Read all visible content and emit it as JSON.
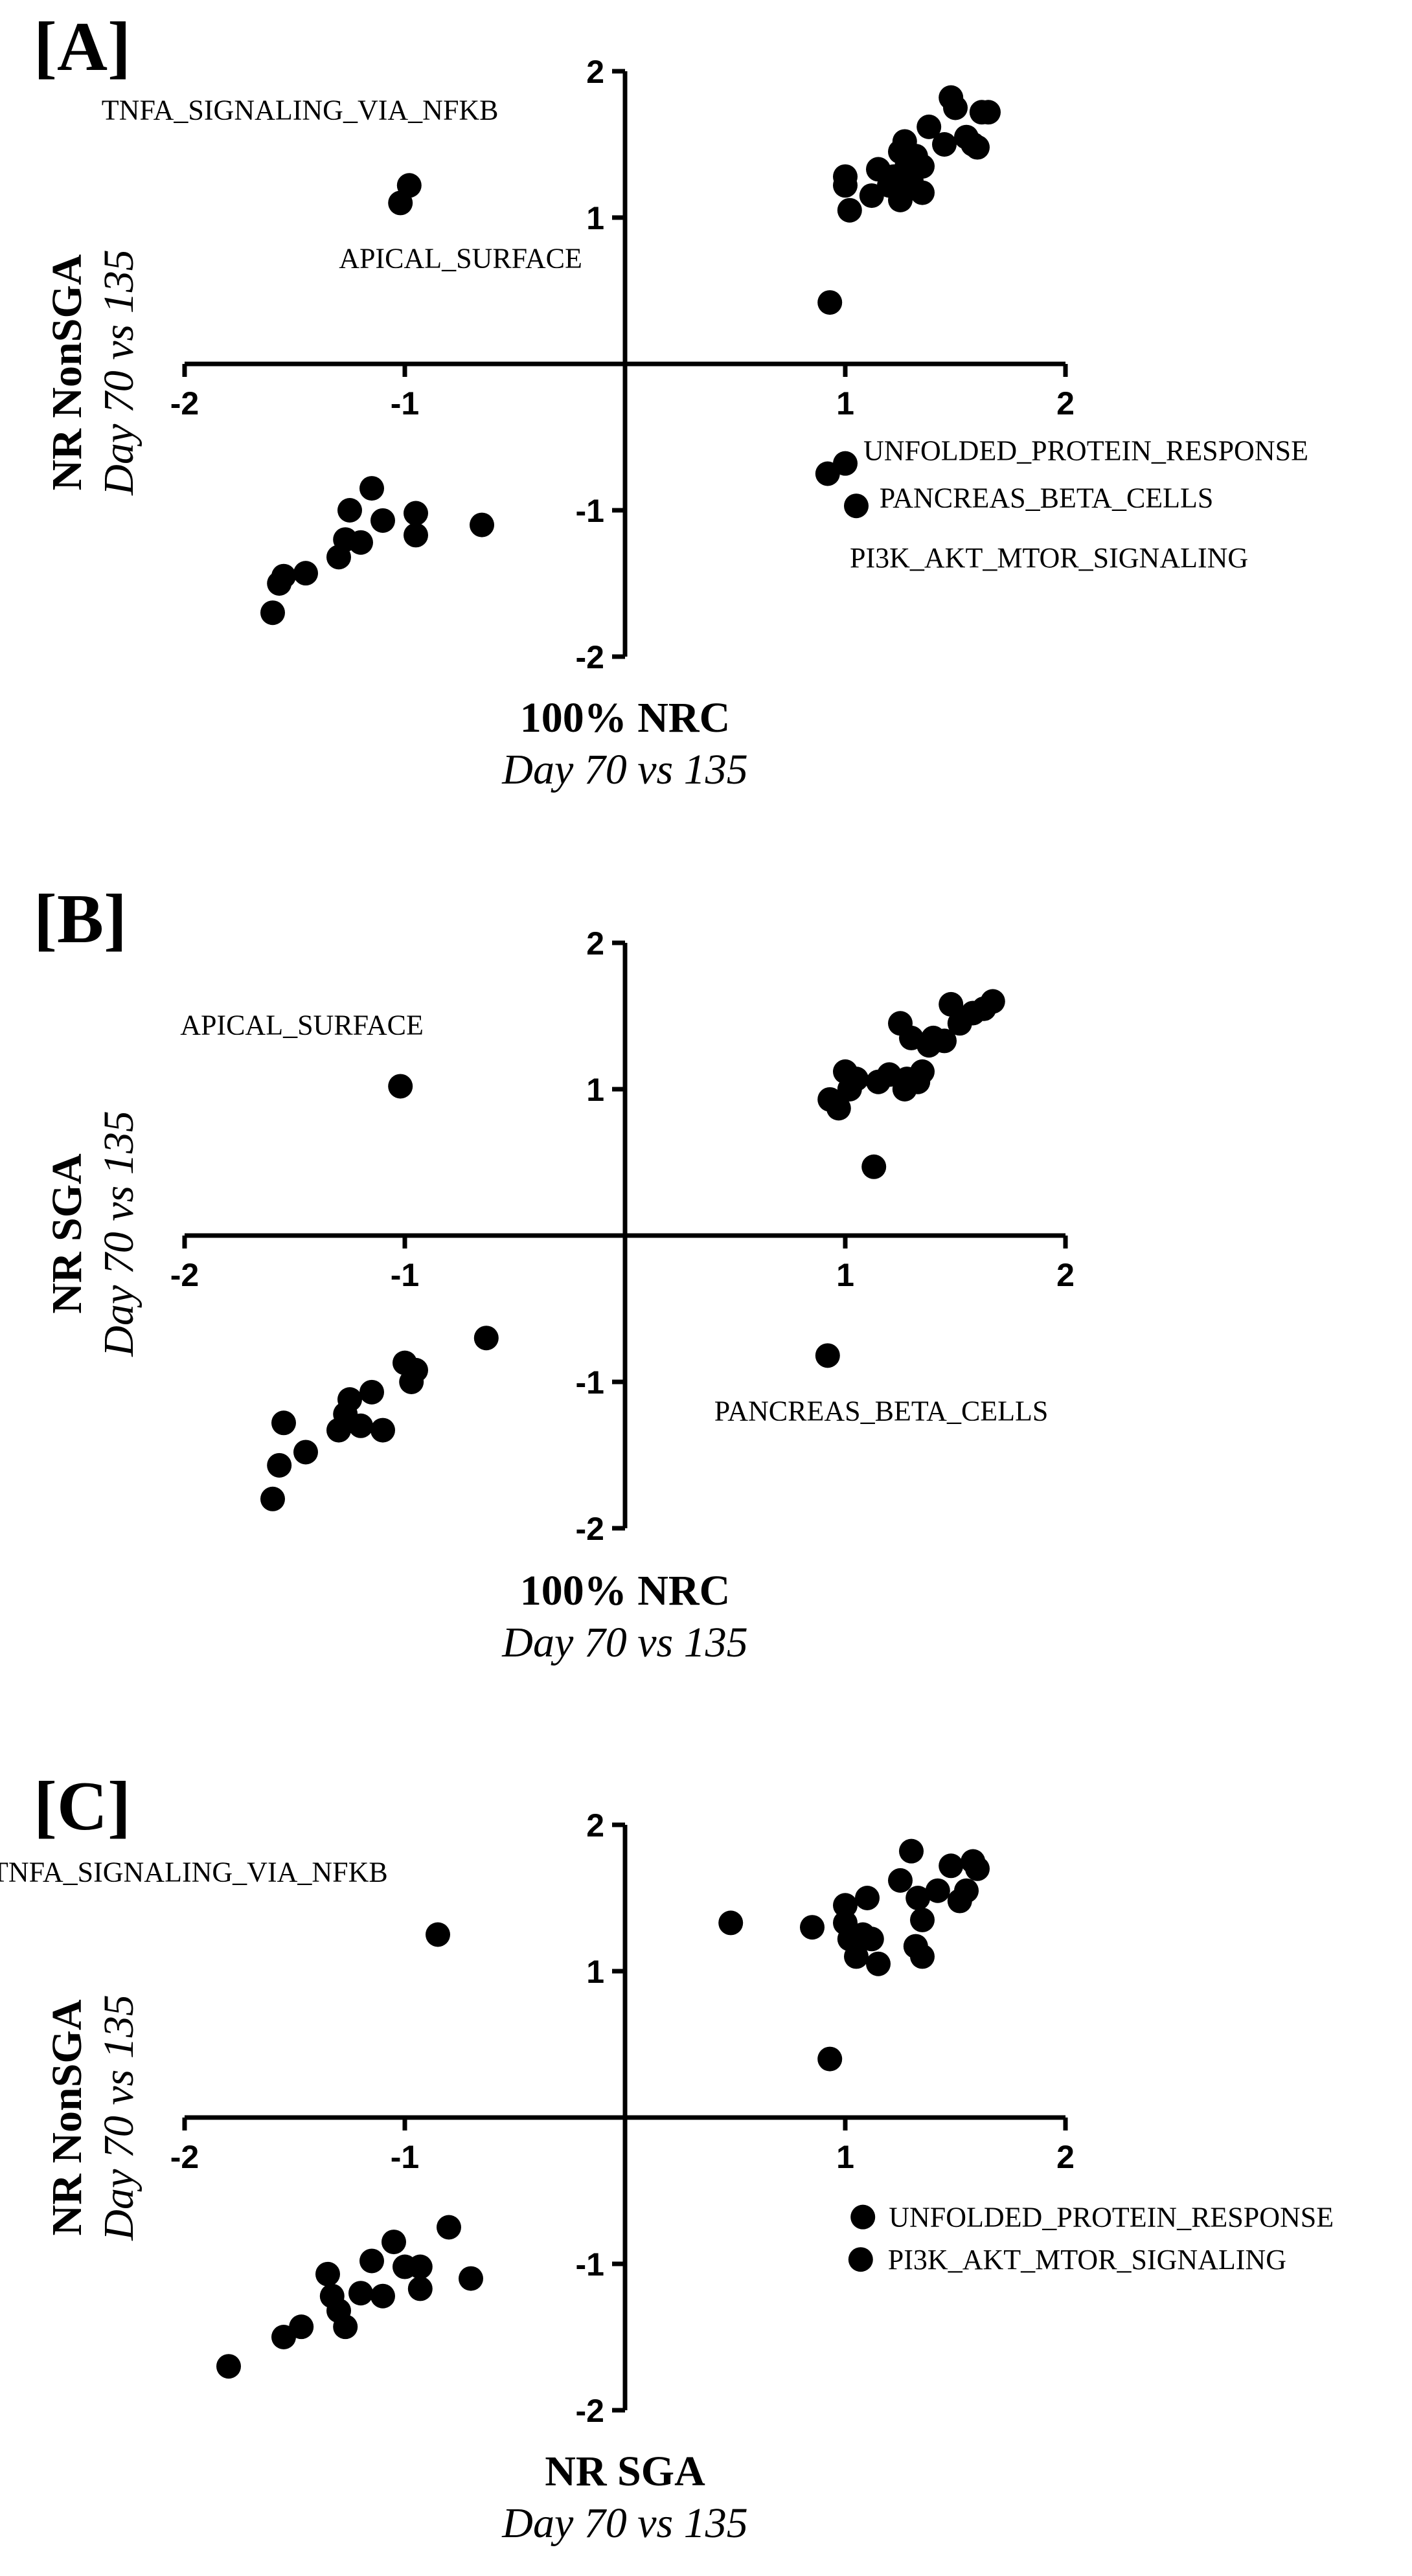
{
  "chart_data": [
    {
      "type": "scatter",
      "panel_label": "[A]",
      "xlabel": "100% NRC",
      "xlabel_sub": "Day 70 vs 135",
      "ylabel": "NR NonSGA",
      "ylabel_sub": "Day 70 vs 135",
      "xlim": [
        -2,
        2
      ],
      "ylim": [
        -2,
        2
      ],
      "xticks": [
        "-2",
        "-1",
        "1",
        "2"
      ],
      "yticks": [
        "2",
        "1",
        "-1",
        "-2"
      ],
      "points": [
        [
          -1.6,
          -1.7
        ],
        [
          -1.57,
          -1.5
        ],
        [
          -1.55,
          -1.45
        ],
        [
          -1.45,
          -1.43
        ],
        [
          -1.3,
          -1.32
        ],
        [
          -1.27,
          -1.2
        ],
        [
          -1.25,
          -1.0
        ],
        [
          -1.2,
          -1.22
        ],
        [
          -1.15,
          -0.85
        ],
        [
          -1.1,
          -1.07
        ],
        [
          -0.95,
          -1.02
        ],
        [
          -0.95,
          -1.17
        ],
        [
          -0.65,
          -1.1
        ],
        [
          -1.02,
          1.1
        ],
        [
          -0.98,
          1.22
        ],
        [
          0.93,
          0.42
        ],
        [
          1.0,
          1.28
        ],
        [
          1.0,
          1.22
        ],
        [
          1.02,
          1.05
        ],
        [
          1.12,
          1.15
        ],
        [
          1.15,
          1.33
        ],
        [
          1.2,
          1.22
        ],
        [
          1.22,
          1.28
        ],
        [
          1.25,
          1.45
        ],
        [
          1.25,
          1.12
        ],
        [
          1.27,
          1.52
        ],
        [
          1.28,
          1.35
        ],
        [
          1.3,
          1.25
        ],
        [
          1.32,
          1.42
        ],
        [
          1.35,
          1.17
        ],
        [
          1.35,
          1.35
        ],
        [
          1.38,
          1.62
        ],
        [
          1.45,
          1.5
        ],
        [
          1.48,
          1.82
        ],
        [
          1.5,
          1.75
        ],
        [
          1.55,
          1.55
        ],
        [
          1.58,
          1.5
        ],
        [
          1.6,
          1.48
        ],
        [
          1.62,
          1.72
        ],
        [
          1.65,
          1.72
        ],
        [
          0.92,
          -0.75
        ],
        [
          1.0,
          -0.68
        ],
        [
          1.05,
          -0.97
        ]
      ],
      "annotations": [
        {
          "text": "TNFA_SIGNALING_VIA_NFKB",
          "x": -0.98,
          "y": 1.22
        },
        {
          "text": "APICAL_SURFACE",
          "x": -1.02,
          "y": 1.1
        },
        {
          "text": "UNFOLDED_PROTEIN_RESPONSE",
          "x": 1.0,
          "y": -0.68
        },
        {
          "text": "PANCREAS_BETA_CELLS",
          "x": 0.92,
          "y": -0.75
        },
        {
          "text": "PI3K_AKT_MTOR_SIGNALING",
          "x": 1.05,
          "y": -0.97
        }
      ]
    },
    {
      "type": "scatter",
      "panel_label": "[B]",
      "xlabel": "100% NRC",
      "xlabel_sub": "Day 70 vs 135",
      "ylabel": "NR SGA",
      "ylabel_sub": "Day 70 vs 135",
      "xlim": [
        -2,
        2
      ],
      "ylim": [
        -2,
        2
      ],
      "xticks": [
        "-2",
        "-1",
        "1",
        "2"
      ],
      "yticks": [
        "2",
        "1",
        "-1",
        "-2"
      ],
      "points": [
        [
          -1.6,
          -1.8
        ],
        [
          -1.57,
          -1.57
        ],
        [
          -1.55,
          -1.28
        ],
        [
          -1.45,
          -1.48
        ],
        [
          -1.3,
          -1.33
        ],
        [
          -1.27,
          -1.22
        ],
        [
          -1.25,
          -1.12
        ],
        [
          -1.2,
          -1.3
        ],
        [
          -1.15,
          -1.07
        ],
        [
          -1.1,
          -1.33
        ],
        [
          -1.0,
          -0.87
        ],
        [
          -0.97,
          -1.0
        ],
        [
          -0.95,
          -0.92
        ],
        [
          -0.63,
          -0.7
        ],
        [
          -1.02,
          1.02
        ],
        [
          0.93,
          0.93
        ],
        [
          0.97,
          0.87
        ],
        [
          1.0,
          1.12
        ],
        [
          1.02,
          1.0
        ],
        [
          1.05,
          1.07
        ],
        [
          1.13,
          0.47
        ],
        [
          1.15,
          1.05
        ],
        [
          1.2,
          1.1
        ],
        [
          1.25,
          1.45
        ],
        [
          1.27,
          1.0
        ],
        [
          1.28,
          1.07
        ],
        [
          1.3,
          1.35
        ],
        [
          1.33,
          1.05
        ],
        [
          1.35,
          1.12
        ],
        [
          1.38,
          1.3
        ],
        [
          1.4,
          1.35
        ],
        [
          1.45,
          1.33
        ],
        [
          1.48,
          1.58
        ],
        [
          1.52,
          1.45
        ],
        [
          1.58,
          1.52
        ],
        [
          1.63,
          1.55
        ],
        [
          1.67,
          1.6
        ],
        [
          0.92,
          -0.82
        ]
      ],
      "annotations": [
        {
          "text": "APICAL_SURFACE",
          "x": -1.02,
          "y": 1.02
        },
        {
          "text": "PANCREAS_BETA_CELLS",
          "x": 0.92,
          "y": -0.82
        }
      ]
    },
    {
      "type": "scatter",
      "panel_label": "[C]",
      "xlabel": "NR SGA",
      "xlabel_sub": "Day 70 vs 135",
      "ylabel": "NR NonSGA",
      "ylabel_sub": "Day 70 vs 135",
      "xlim": [
        -2,
        2
      ],
      "ylim": [
        -2,
        2
      ],
      "xticks": [
        "-2",
        "-1",
        "1",
        "2"
      ],
      "yticks": [
        "2",
        "1",
        "-1",
        "-2"
      ],
      "points": [
        [
          -1.8,
          -1.7
        ],
        [
          -1.55,
          -1.5
        ],
        [
          -1.47,
          -1.43
        ],
        [
          -1.35,
          -1.07
        ],
        [
          -1.33,
          -1.22
        ],
        [
          -1.3,
          -1.32
        ],
        [
          -1.27,
          -1.43
        ],
        [
          -1.2,
          -1.2
        ],
        [
          -1.15,
          -0.98
        ],
        [
          -1.1,
          -1.22
        ],
        [
          -1.05,
          -0.85
        ],
        [
          -1.0,
          -1.02
        ],
        [
          -0.93,
          -1.02
        ],
        [
          -0.93,
          -1.17
        ],
        [
          -0.8,
          -0.75
        ],
        [
          -0.7,
          -1.1
        ],
        [
          -0.85,
          1.25
        ],
        [
          0.48,
          1.33
        ],
        [
          0.85,
          1.3
        ],
        [
          0.93,
          0.4
        ],
        [
          1.0,
          1.33
        ],
        [
          1.0,
          1.45
        ],
        [
          1.02,
          1.22
        ],
        [
          1.05,
          1.1
        ],
        [
          1.08,
          1.25
        ],
        [
          1.1,
          1.5
        ],
        [
          1.12,
          1.22
        ],
        [
          1.15,
          1.05
        ],
        [
          1.25,
          1.62
        ],
        [
          1.3,
          1.82
        ],
        [
          1.32,
          1.17
        ],
        [
          1.33,
          1.5
        ],
        [
          1.35,
          1.35
        ],
        [
          1.35,
          1.1
        ],
        [
          1.42,
          1.55
        ],
        [
          1.48,
          1.72
        ],
        [
          1.52,
          1.48
        ],
        [
          1.55,
          1.55
        ],
        [
          1.58,
          1.75
        ],
        [
          1.6,
          1.7
        ],
        [
          1.08,
          -0.68
        ],
        [
          1.07,
          -0.97
        ]
      ],
      "annotations": [
        {
          "text": "TNFA_SIGNALING_VIA_NFKB",
          "x": -0.85,
          "y": 1.25
        },
        {
          "text": "UNFOLDED_PROTEIN_RESPONSE",
          "x": 1.08,
          "y": -0.68
        },
        {
          "text": "PI3K_AKT_MTOR_SIGNALING",
          "x": 1.07,
          "y": -0.97
        }
      ]
    }
  ]
}
